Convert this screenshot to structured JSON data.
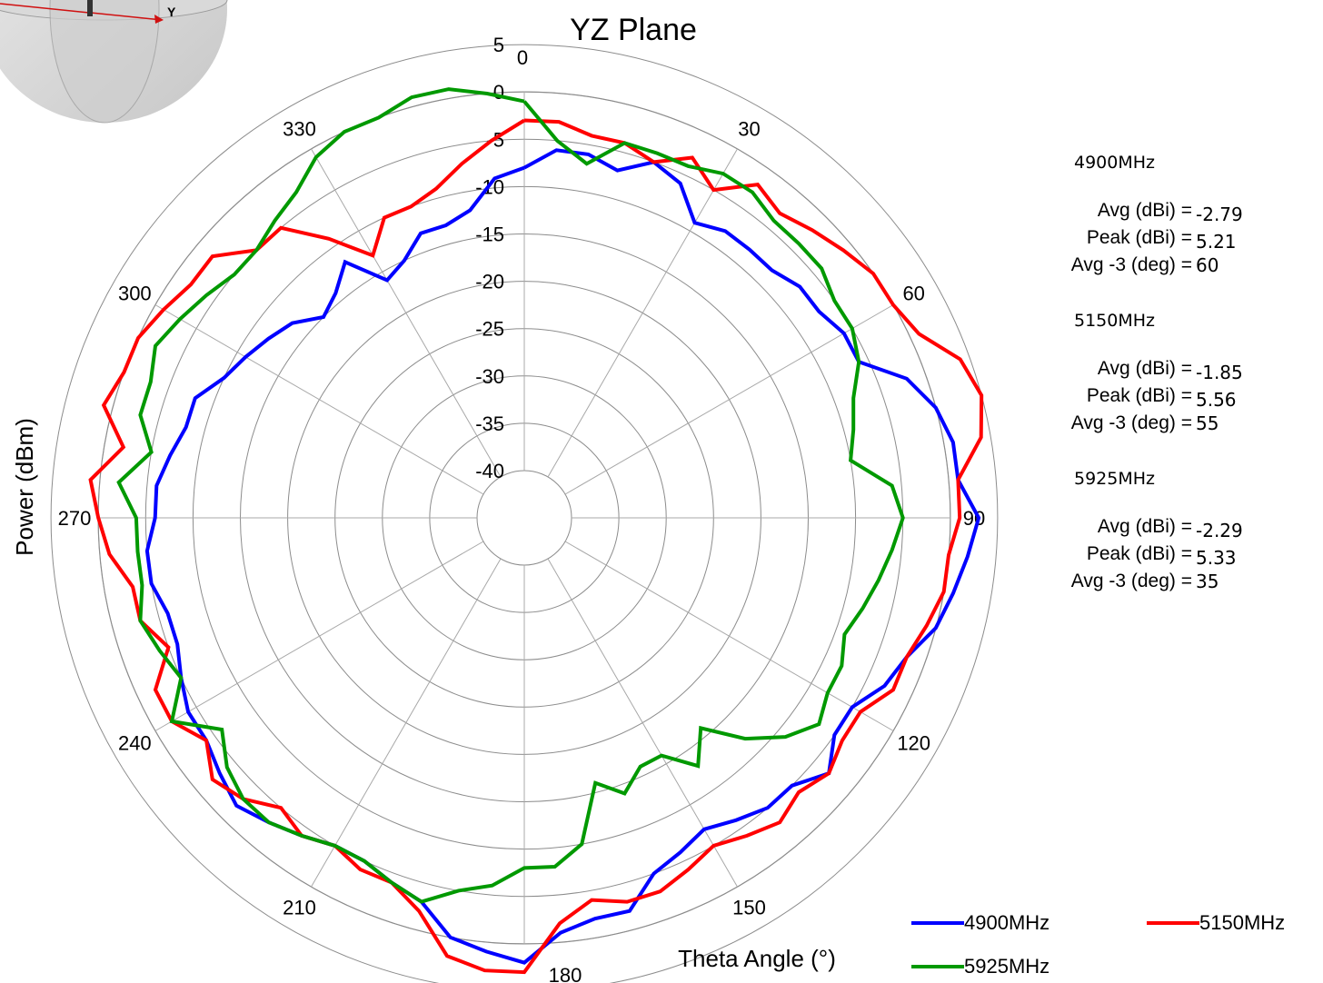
{
  "chart_data": {
    "type": "polar-line",
    "title": "YZ Plane",
    "xlabel": "Theta  Angle (°)",
    "ylabel": "Power (dBm)",
    "radial_range": [
      -40,
      5
    ],
    "radial_ticks": [
      5,
      0,
      -5,
      -10,
      -15,
      -20,
      -25,
      -30,
      -35,
      -40
    ],
    "angle_labels": [
      0,
      30,
      60,
      90,
      120,
      150,
      180,
      210,
      240,
      270,
      300,
      330
    ],
    "angular_direction": "clockwise",
    "zero_location": "top",
    "grid": true,
    "legend_position": "bottom-right",
    "theta_step_deg": 5,
    "series": [
      {
        "name": "4900MHz",
        "color": "#0000ff",
        "values": [
          -8,
          -6,
          -6,
          -7,
          -5,
          -6,
          -9,
          -8,
          -8,
          -8,
          -7,
          -7,
          -6,
          -6,
          -2,
          0,
          1,
          1,
          3,
          2,
          1,
          0,
          -2,
          -3,
          -5,
          -5,
          -3,
          -5,
          -5,
          -6,
          -7,
          -6,
          -5,
          -2,
          -2,
          -1,
          2,
          1,
          0,
          -3,
          -4,
          -5,
          -5,
          -4,
          -3,
          -2,
          -3,
          -4,
          -4,
          -5,
          -6,
          -6,
          -5,
          -5,
          -6,
          -6,
          -7,
          -8,
          -8,
          -10,
          -11,
          -12,
          -13,
          -15,
          -14,
          -12,
          -16,
          -15,
          -13,
          -13,
          -12,
          -9
        ]
      },
      {
        "name": "5150MHz",
        "color": "#ff0000",
        "values": [
          -3,
          -3,
          -4,
          -4,
          -5,
          -3,
          -5,
          -2,
          -3,
          -2,
          -1,
          0,
          0,
          1,
          4,
          5,
          4,
          1,
          1,
          0,
          0,
          -1,
          -2,
          -2,
          -4,
          -4,
          -3,
          -4,
          -3,
          -4,
          -5,
          -4,
          -3,
          -3,
          -4,
          -2,
          3,
          3,
          2,
          -2,
          -4,
          -4,
          -5,
          -4,
          -5,
          -3,
          -2,
          -4,
          -2,
          -2,
          -5,
          -3,
          -3,
          -1,
          0,
          1,
          -2,
          1,
          0,
          0,
          -1,
          -2,
          -2,
          -5,
          -5,
          -9,
          -13,
          -10,
          -10,
          -9,
          -7,
          -5
        ]
      },
      {
        "name": "5925MHz",
        "color": "#009900",
        "values": [
          -1,
          -5,
          -7,
          -4,
          -4,
          -4,
          -3,
          -3,
          -4,
          -4,
          -4,
          -5,
          -5,
          -6,
          -8,
          -9,
          -10,
          -6,
          -5,
          -6,
          -7,
          -8,
          -9,
          -8,
          -8,
          -7,
          -9,
          -12,
          -16,
          -13,
          -16,
          -16,
          -14,
          -16,
          -10,
          -8,
          -8,
          -6,
          -5,
          -3,
          -4,
          -5,
          -5,
          -4,
          -3,
          -3,
          -4,
          -6,
          -2,
          -5,
          -4,
          -3,
          -4,
          -4,
          -4,
          -2,
          -5,
          -3,
          -3,
          -2,
          -3,
          -4,
          -5,
          -5,
          -4,
          -3,
          -1,
          0,
          0,
          1,
          1,
          0
        ]
      }
    ]
  },
  "stats": [
    {
      "band": "4900MHz",
      "avg_label": "Avg (dBi) =",
      "avg": "-2.79",
      "peak_label": "Peak (dBi) =",
      "peak": "5.21",
      "avg3_label": "Avg -3 (deg) =",
      "avg3": "60"
    },
    {
      "band": "5150MHz",
      "avg_label": "Avg (dBi) =",
      "avg": "-1.85",
      "peak_label": "Peak (dBi) =",
      "peak": "5.56",
      "avg3_label": "Avg -3 (deg) =",
      "avg3": "55"
    },
    {
      "band": "5925MHz",
      "avg_label": "Avg (dBi) =",
      "avg": "-2.29",
      "peak_label": "Peak (dBi) =",
      "peak": "5.33",
      "avg3_label": "Avg -3 (deg) =",
      "avg3": "35"
    }
  ],
  "inset": {
    "axis_label": "Y"
  }
}
